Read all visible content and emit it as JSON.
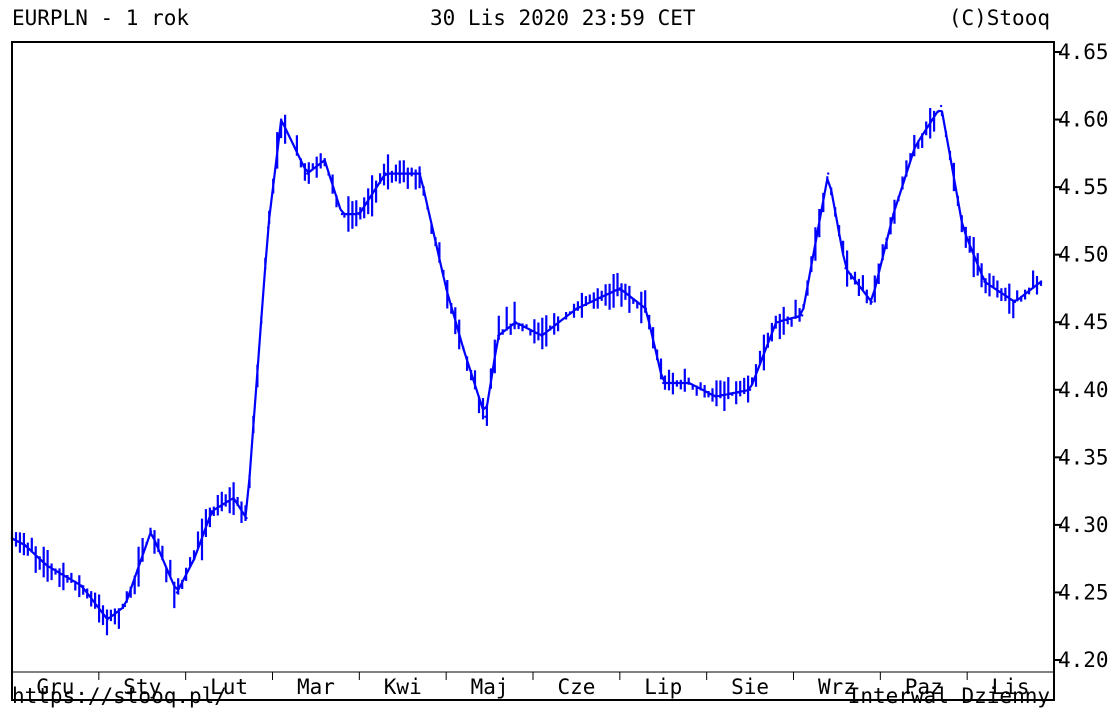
{
  "header": {
    "title": "EURPLN - 1 rok",
    "datetime": "30 Lis 2020 23:59 CET",
    "copyright": "(C)Stooq"
  },
  "footer": {
    "url": "https://stooq.pl/",
    "interval": "Interwal Dzienny"
  },
  "colors": {
    "series": "#0000ff",
    "frame": "#000000",
    "background": "#ffffff"
  },
  "chart_data": {
    "type": "line",
    "style": "ohlc-bars",
    "ylim": [
      4.2,
      4.65
    ],
    "yticks": [
      "4.20",
      "4.25",
      "4.30",
      "4.35",
      "4.40",
      "4.45",
      "4.50",
      "4.55",
      "4.60",
      "4.65"
    ],
    "y_axis_side": "right",
    "months": [
      "Gru",
      "Sty",
      "Lut",
      "Mar",
      "Kwi",
      "Maj",
      "Cze",
      "Lip",
      "Sie",
      "Wrz",
      "Paz",
      "Lis"
    ],
    "xlim": [
      0,
      12
    ],
    "grid": false,
    "series": [
      {
        "x": [
          0.0,
          0.15,
          0.4,
          0.8,
          1.1,
          1.3,
          1.6,
          1.9,
          2.1,
          2.3,
          2.55,
          2.7,
          2.95,
          3.1,
          3.4,
          3.6,
          3.8,
          4.0,
          4.3,
          4.7,
          5.0,
          5.2,
          5.45,
          5.6,
          5.8,
          6.1,
          6.5,
          7.0,
          7.3,
          7.5,
          7.8,
          8.1,
          8.5,
          8.8,
          9.1,
          9.4,
          9.6,
          9.9,
          10.15,
          10.4,
          10.7,
          10.95,
          11.2,
          11.55,
          11.85
        ],
        "y": [
          4.29,
          4.285,
          4.27,
          4.255,
          4.23,
          4.24,
          4.295,
          4.25,
          4.275,
          4.31,
          4.32,
          4.305,
          4.52,
          4.6,
          4.56,
          4.57,
          4.53,
          4.53,
          4.56,
          4.56,
          4.475,
          4.43,
          4.38,
          4.44,
          4.45,
          4.44,
          4.46,
          4.475,
          4.46,
          4.405,
          4.405,
          4.395,
          4.4,
          4.45,
          4.455,
          4.56,
          4.49,
          4.465,
          4.53,
          4.58,
          4.61,
          4.52,
          4.48,
          4.465,
          4.48
        ]
      }
    ]
  }
}
